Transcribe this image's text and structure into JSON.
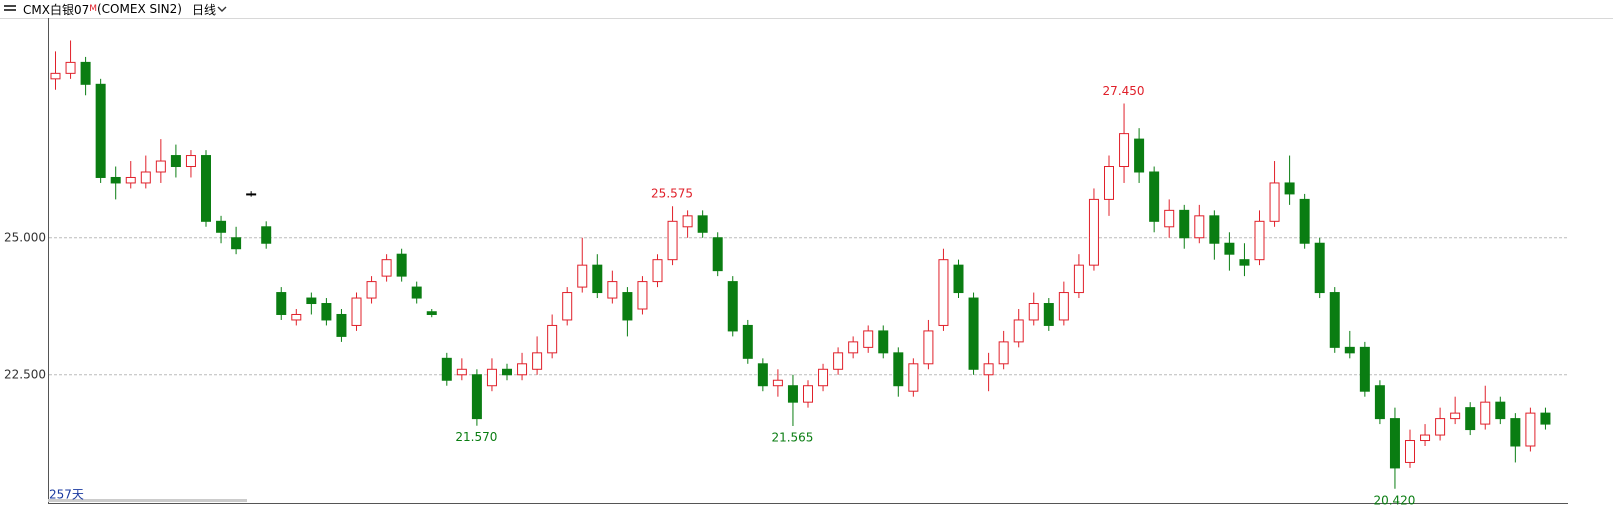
{
  "header": {
    "instrument": "CMX白银07",
    "badge": "M",
    "code": "(COMEX SIN2)",
    "period": "日线"
  },
  "chart_data": {
    "type": "candlestick",
    "day_count": "257天",
    "up_color": "#e0202a",
    "down_color": "#0a7d12",
    "grid": true,
    "ylim": [
      20.16,
      29.01
    ],
    "yticks": [
      {
        "value": 22.5,
        "label": "22.500"
      },
      {
        "value": 25,
        "label": "25.000"
      }
    ],
    "annotations": [
      {
        "value": 27.45,
        "label": "27.450"
      },
      {
        "value": 25.575,
        "label": "25.575"
      },
      {
        "value": 21.57,
        "label": "21.570"
      },
      {
        "value": 21.565,
        "label": "21.565"
      },
      {
        "value": 20.42,
        "label": "20.420"
      }
    ],
    "ohlc": [
      [
        27.9,
        28.4,
        27.7,
        28.0
      ],
      [
        28.0,
        28.6,
        27.9,
        28.2
      ],
      [
        28.2,
        28.3,
        27.6,
        27.8
      ],
      [
        27.8,
        27.9,
        26.0,
        26.1
      ],
      [
        26.1,
        26.3,
        25.7,
        26.0
      ],
      [
        26.0,
        26.4,
        25.9,
        26.1
      ],
      [
        26.0,
        26.5,
        25.9,
        26.2
      ],
      [
        26.2,
        26.8,
        26.0,
        26.4
      ],
      [
        26.5,
        26.7,
        26.1,
        26.3
      ],
      [
        26.3,
        26.6,
        26.1,
        26.5
      ],
      [
        26.5,
        26.6,
        25.2,
        25.3
      ],
      [
        25.3,
        25.4,
        24.9,
        25.1
      ],
      [
        25.0,
        25.2,
        24.7,
        24.8
      ],
      [
        25.8,
        25.85,
        25.75,
        25.8
      ],
      [
        25.2,
        25.3,
        24.8,
        24.9
      ],
      [
        24.0,
        24.1,
        23.5,
        23.6
      ],
      [
        23.5,
        23.7,
        23.4,
        23.6
      ],
      [
        23.9,
        24.0,
        23.6,
        23.8
      ],
      [
        23.8,
        23.9,
        23.4,
        23.5
      ],
      [
        23.6,
        23.7,
        23.1,
        23.2
      ],
      [
        23.4,
        24.0,
        23.3,
        23.9
      ],
      [
        23.9,
        24.3,
        23.8,
        24.2
      ],
      [
        24.3,
        24.7,
        24.2,
        24.6
      ],
      [
        24.7,
        24.8,
        24.2,
        24.3
      ],
      [
        24.1,
        24.2,
        23.8,
        23.9
      ],
      [
        23.65,
        23.7,
        23.55,
        23.6
      ],
      [
        22.8,
        22.9,
        22.3,
        22.4
      ],
      [
        22.5,
        22.8,
        22.4,
        22.6
      ],
      [
        22.5,
        22.6,
        21.57,
        21.7
      ],
      [
        22.3,
        22.8,
        22.2,
        22.6
      ],
      [
        22.6,
        22.7,
        22.4,
        22.5
      ],
      [
        22.5,
        22.9,
        22.4,
        22.7
      ],
      [
        22.6,
        23.2,
        22.5,
        22.9
      ],
      [
        22.9,
        23.6,
        22.8,
        23.4
      ],
      [
        23.5,
        24.1,
        23.4,
        24.0
      ],
      [
        24.1,
        25.0,
        24.0,
        24.5
      ],
      [
        24.5,
        24.7,
        23.9,
        24.0
      ],
      [
        23.9,
        24.4,
        23.8,
        24.2
      ],
      [
        24.0,
        24.1,
        23.2,
        23.5
      ],
      [
        23.7,
        24.3,
        23.6,
        24.2
      ],
      [
        24.2,
        24.7,
        24.1,
        24.6
      ],
      [
        24.6,
        25.575,
        24.5,
        25.3
      ],
      [
        25.2,
        25.5,
        25.0,
        25.4
      ],
      [
        25.4,
        25.5,
        25.0,
        25.1
      ],
      [
        25.0,
        25.1,
        24.3,
        24.4
      ],
      [
        24.2,
        24.3,
        23.2,
        23.3
      ],
      [
        23.4,
        23.5,
        22.7,
        22.8
      ],
      [
        22.7,
        22.8,
        22.2,
        22.3
      ],
      [
        22.3,
        22.6,
        22.1,
        22.4
      ],
      [
        22.3,
        22.5,
        21.565,
        22.0
      ],
      [
        22.0,
        22.4,
        21.9,
        22.3
      ],
      [
        22.3,
        22.7,
        22.2,
        22.6
      ],
      [
        22.6,
        23.0,
        22.5,
        22.9
      ],
      [
        22.9,
        23.2,
        22.8,
        23.1
      ],
      [
        23.0,
        23.4,
        22.9,
        23.3
      ],
      [
        23.3,
        23.4,
        22.8,
        22.9
      ],
      [
        22.9,
        23.0,
        22.1,
        22.3
      ],
      [
        22.2,
        22.8,
        22.1,
        22.7
      ],
      [
        22.7,
        23.5,
        22.6,
        23.3
      ],
      [
        23.4,
        24.8,
        23.3,
        24.6
      ],
      [
        24.5,
        24.6,
        23.9,
        24.0
      ],
      [
        23.9,
        24.0,
        22.5,
        22.6
      ],
      [
        22.5,
        22.9,
        22.2,
        22.7
      ],
      [
        22.7,
        23.3,
        22.6,
        23.1
      ],
      [
        23.1,
        23.7,
        23.0,
        23.5
      ],
      [
        23.5,
        24.0,
        23.4,
        23.8
      ],
      [
        23.8,
        23.9,
        23.3,
        23.4
      ],
      [
        23.5,
        24.2,
        23.4,
        24.0
      ],
      [
        24.0,
        24.7,
        23.9,
        24.5
      ],
      [
        24.5,
        25.9,
        24.4,
        25.7
      ],
      [
        25.7,
        26.5,
        25.4,
        26.3
      ],
      [
        26.3,
        27.45,
        26.0,
        26.9
      ],
      [
        26.8,
        27.0,
        26.0,
        26.2
      ],
      [
        26.2,
        26.3,
        25.1,
        25.3
      ],
      [
        25.2,
        25.7,
        25.0,
        25.5
      ],
      [
        25.5,
        25.6,
        24.8,
        25.0
      ],
      [
        25.0,
        25.6,
        24.9,
        25.4
      ],
      [
        25.4,
        25.5,
        24.6,
        24.9
      ],
      [
        24.9,
        25.1,
        24.4,
        24.7
      ],
      [
        24.6,
        24.9,
        24.3,
        24.5
      ],
      [
        24.6,
        25.5,
        24.5,
        25.3
      ],
      [
        25.3,
        26.4,
        25.2,
        26.0
      ],
      [
        26.0,
        26.5,
        25.6,
        25.8
      ],
      [
        25.7,
        25.8,
        24.8,
        24.9
      ],
      [
        24.9,
        25.0,
        23.9,
        24.0
      ],
      [
        24.0,
        24.1,
        22.9,
        23.0
      ],
      [
        23.0,
        23.3,
        22.8,
        22.9
      ],
      [
        23.0,
        23.1,
        22.1,
        22.2
      ],
      [
        22.3,
        22.4,
        21.6,
        21.7
      ],
      [
        21.7,
        21.9,
        20.42,
        20.8
      ],
      [
        20.9,
        21.5,
        20.8,
        21.3
      ],
      [
        21.3,
        21.6,
        21.2,
        21.4
      ],
      [
        21.4,
        21.9,
        21.3,
        21.7
      ],
      [
        21.7,
        22.1,
        21.6,
        21.8
      ],
      [
        21.9,
        22.0,
        21.4,
        21.5
      ],
      [
        21.6,
        22.3,
        21.5,
        22.0
      ],
      [
        22.0,
        22.1,
        21.6,
        21.7
      ],
      [
        21.7,
        21.8,
        20.9,
        21.2
      ],
      [
        21.2,
        21.9,
        21.1,
        21.8
      ],
      [
        21.8,
        21.9,
        21.5,
        21.6
      ]
    ]
  }
}
